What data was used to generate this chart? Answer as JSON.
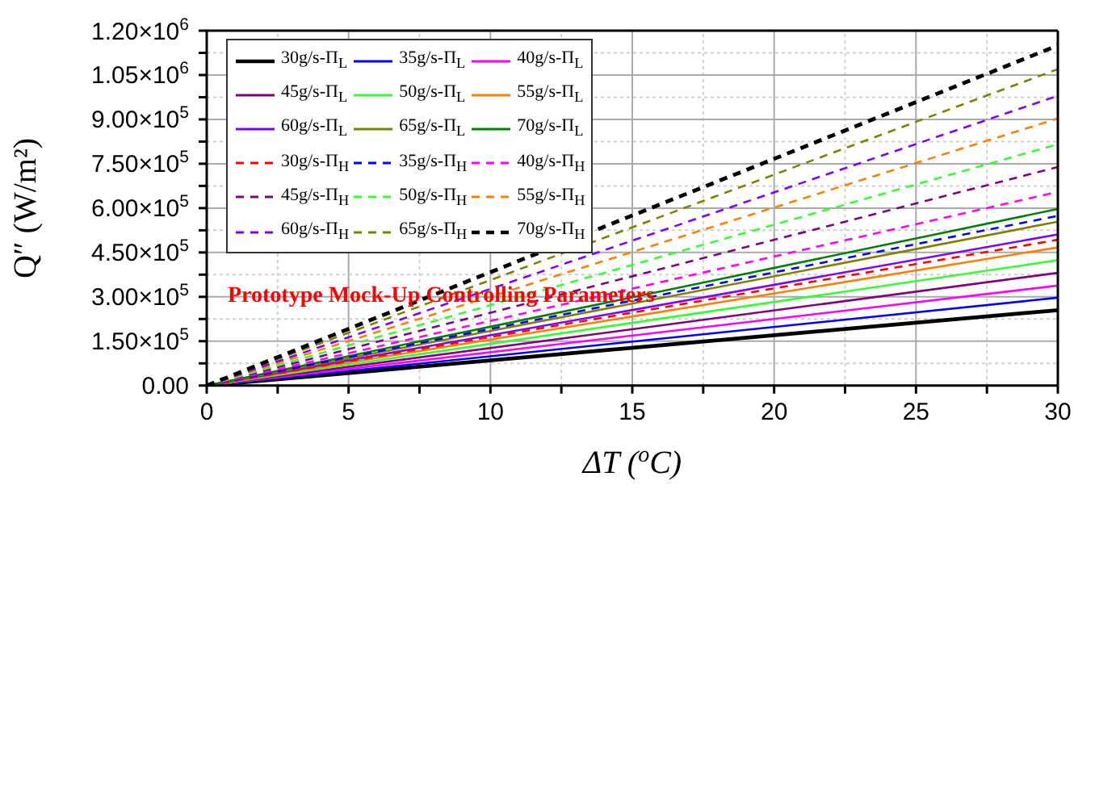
{
  "chart_data": {
    "type": "line",
    "xlabel": "ΔT ($^{o}$C)",
    "ylabel": "Q″ (W/m²)",
    "annotations": [
      "Prototype Mock-Up Controlling Parameters"
    ],
    "xlim": [
      0,
      30
    ],
    "ylim": [
      0,
      1200000
    ],
    "xticks": [
      0,
      {
        "value": 2.5,
        "label": null
      },
      5,
      {
        "value": 7.5,
        "label": null
      },
      10,
      {
        "value": 12.5,
        "label": null
      },
      15,
      {
        "value": 17.5,
        "label": null
      },
      20,
      {
        "value": 22.5,
        "label": null
      },
      25,
      {
        "value": 27.5,
        "label": null
      },
      30
    ],
    "yticks": [
      {
        "value": 0,
        "label": "0.00"
      },
      {
        "value": 75000,
        "label": null
      },
      {
        "value": 150000,
        "label": "1.50×10$^{5}$"
      },
      {
        "value": 225000,
        "label": null
      },
      {
        "value": 300000,
        "label": "3.00×10$^{5}$"
      },
      {
        "value": 375000,
        "label": null
      },
      {
        "value": 450000,
        "label": "4.50×10$^{5}$"
      },
      {
        "value": 525000,
        "label": null
      },
      {
        "value": 600000,
        "label": "6.00×10$^{5}$"
      },
      {
        "value": 675000,
        "label": null
      },
      {
        "value": 750000,
        "label": "7.50×10$^{5}$"
      },
      {
        "value": 825000,
        "label": null
      },
      {
        "value": 900000,
        "label": "9.00×10$^{5}$"
      },
      {
        "value": 975000,
        "label": null
      },
      {
        "value": 1050000,
        "label": "1.05×10$^{6}$"
      },
      {
        "value": 1125000,
        "label": null
      },
      {
        "value": 1200000,
        "label": "1.20×10$^{6}$"
      }
    ],
    "grid": true,
    "legend": "top left",
    "marker": "none",
    "x": [
      0,
      30
    ],
    "series": [
      {
        "name": "30g/s-Π$_{L}$",
        "color": "#000000",
        "line_style": "solid",
        "values": [
          0,
          255000
        ]
      },
      {
        "name": "35g/s-Π$_{L}$",
        "color": "#0000ff",
        "line_style": "solid",
        "values": [
          0,
          297000
        ]
      },
      {
        "name": "40g/s-Π$_{L}$",
        "color": "#ff00ff",
        "line_style": "solid",
        "values": [
          0,
          338000
        ]
      },
      {
        "name": "45g/s-Π$_{L}$",
        "color": "#800080",
        "line_style": "solid",
        "values": [
          0,
          381000
        ]
      },
      {
        "name": "50g/s-Π$_{L}$",
        "color": "#33ff33",
        "line_style": "solid",
        "values": [
          0,
          424000
        ]
      },
      {
        "name": "55g/s-Π$_{L}$",
        "color": "#ff8000",
        "line_style": "solid",
        "values": [
          0,
          467000
        ]
      },
      {
        "name": "60g/s-Π$_{L}$",
        "color": "#8000ff",
        "line_style": "solid",
        "values": [
          0,
          511000
        ]
      },
      {
        "name": "65g/s-Π$_{L}$",
        "color": "#808000",
        "line_style": "solid",
        "values": [
          0,
          554000
        ]
      },
      {
        "name": "70g/s-Π$_{L}$",
        "color": "#008000",
        "line_style": "solid",
        "values": [
          0,
          597000
        ]
      },
      {
        "name": "30g/s-Π$_{H}$",
        "color": "#ff0000",
        "line_style": "dashed",
        "values": [
          0,
          493000
        ]
      },
      {
        "name": "35g/s-Π$_{H}$",
        "color": "#0000ff",
        "line_style": "dashed",
        "values": [
          0,
          574000
        ]
      },
      {
        "name": "40g/s-Π$_{H}$",
        "color": "#ff00ff",
        "line_style": "dashed",
        "values": [
          0,
          655000
        ]
      },
      {
        "name": "45g/s-Π$_{H}$",
        "color": "#800080",
        "line_style": "dashed",
        "values": [
          0,
          739000
        ]
      },
      {
        "name": "50g/s-Π$_{H}$",
        "color": "#33ff33",
        "line_style": "dashed",
        "values": [
          0,
          816000
        ]
      },
      {
        "name": "55g/s-Π$_{H}$",
        "color": "#ff8000",
        "line_style": "dashed",
        "values": [
          0,
          903000
        ]
      },
      {
        "name": "60g/s-Π$_{H}$",
        "color": "#8000ff",
        "line_style": "dashed",
        "values": [
          0,
          980000
        ]
      },
      {
        "name": "65g/s-Π$_{H}$",
        "color": "#808000",
        "line_style": "dashed",
        "values": [
          0,
          1070000
        ]
      },
      {
        "name": "70g/s-Π$_{H}$",
        "color": "#000000",
        "line_style": "dashed",
        "values": [
          0,
          1150000
        ]
      }
    ]
  }
}
